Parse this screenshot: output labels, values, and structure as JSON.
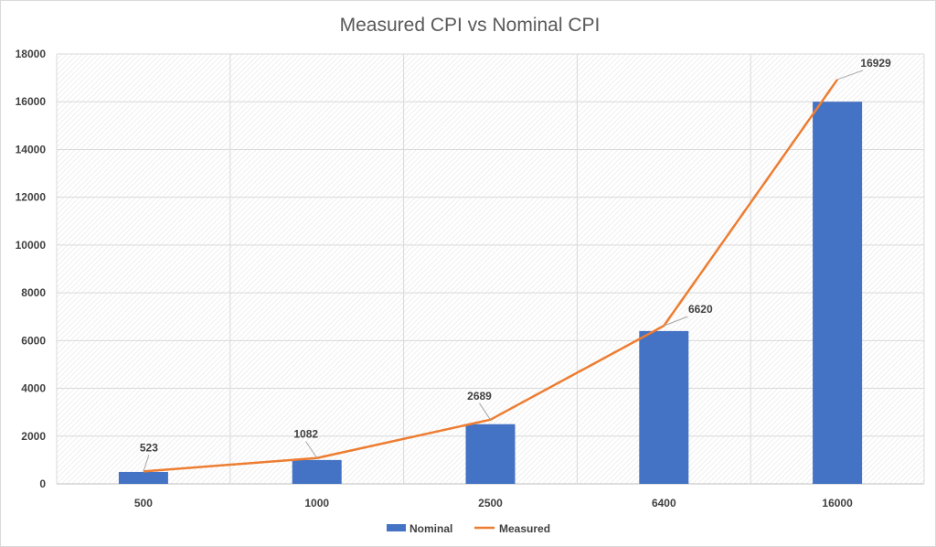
{
  "chart_data": {
    "type": "bar",
    "title": "Measured CPI vs Nominal CPI",
    "xlabel": "",
    "ylabel": "",
    "categories": [
      "500",
      "1000",
      "2500",
      "6400",
      "16000"
    ],
    "ylim": [
      0,
      18000
    ],
    "yticks": [
      0,
      2000,
      4000,
      6000,
      8000,
      10000,
      12000,
      14000,
      16000,
      18000
    ],
    "ytick_labels": [
      "0",
      "2000",
      "4000",
      "6000",
      "8000",
      "10000",
      "12000",
      "14000",
      "16000",
      "18000"
    ],
    "grid": true,
    "legend_position": "bottom",
    "series": [
      {
        "name": "Nominal",
        "type": "bar",
        "color": "#4472c4",
        "values": [
          500,
          1000,
          2500,
          6400,
          16000
        ]
      },
      {
        "name": "Measured",
        "type": "line",
        "color": "#ed7d31",
        "values": [
          523,
          1082,
          2689,
          6620,
          16929
        ],
        "data_labels": [
          "523",
          "1082",
          "2689",
          "6620",
          "16929"
        ]
      }
    ]
  }
}
